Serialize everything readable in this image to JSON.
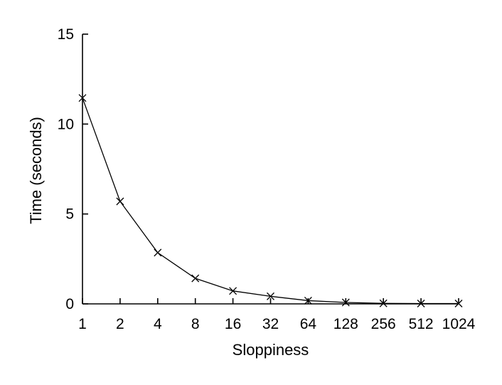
{
  "chart_data": {
    "type": "line",
    "title": "",
    "xlabel": "Sloppiness",
    "ylabel": "Time (seconds)",
    "x_scale": "log2",
    "categories": [
      "1",
      "2",
      "4",
      "8",
      "16",
      "32",
      "64",
      "128",
      "256",
      "512",
      "1024"
    ],
    "y_ticks": [
      "0",
      "5",
      "10",
      "15"
    ],
    "ylim": [
      0,
      15
    ],
    "grid": false,
    "legend": "none",
    "marker": "x",
    "series": [
      {
        "values": [
          11.45,
          5.7,
          2.85,
          1.42,
          0.72,
          0.42,
          0.18,
          0.08,
          0.03,
          0.02,
          0.02
        ]
      }
    ],
    "colors": {
      "line": "#000000",
      "axis": "#000000"
    }
  }
}
